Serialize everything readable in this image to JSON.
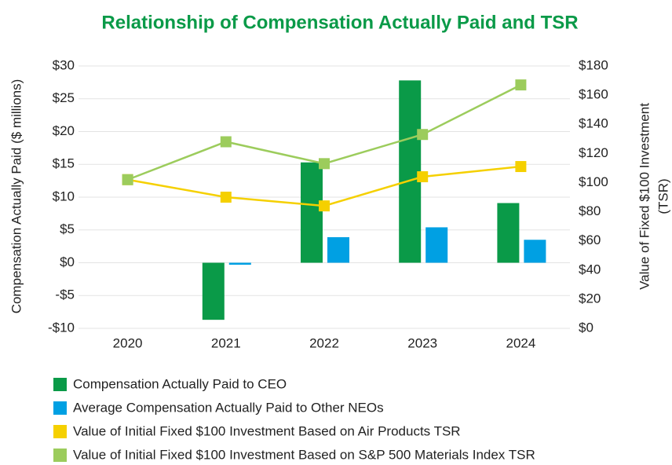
{
  "chart_data": {
    "type": "bar_line",
    "title": "Relationship of Compensation Actually Paid and TSR",
    "ylabel": "Compensation Actually Paid ($ millions)",
    "y2label": [
      "Value of Fixed $100 Investment",
      "(TSR)"
    ],
    "categories": [
      "2020",
      "2021",
      "2022",
      "2023",
      "2024"
    ],
    "ylim": [
      -10,
      30
    ],
    "yticks": [
      {
        "value": -10,
        "label": "-$10"
      },
      {
        "value": -5,
        "label": "-$5"
      },
      {
        "value": 0,
        "label": "$0"
      },
      {
        "value": 5,
        "label": "$5"
      },
      {
        "value": 10,
        "label": "$10"
      },
      {
        "value": 15,
        "label": "$15"
      },
      {
        "value": 20,
        "label": "$20"
      },
      {
        "value": 25,
        "label": "$25"
      },
      {
        "value": 30,
        "label": "$30"
      }
    ],
    "y2lim": [
      0,
      180
    ],
    "y2ticks": [
      {
        "value": 0,
        "label": "$0"
      },
      {
        "value": 20,
        "label": "$20"
      },
      {
        "value": 40,
        "label": "$40"
      },
      {
        "value": 60,
        "label": "$60"
      },
      {
        "value": 80,
        "label": "$80"
      },
      {
        "value": 100,
        "label": "$100"
      },
      {
        "value": 120,
        "label": "$120"
      },
      {
        "value": 140,
        "label": "$140"
      },
      {
        "value": 160,
        "label": "$160"
      },
      {
        "value": 180,
        "label": "$180"
      }
    ],
    "grid": true,
    "series": [
      {
        "name": "Compensation Actually Paid to CEO",
        "type": "bar",
        "color": "#0a9a48",
        "values": [
          null,
          -8.7,
          15.3,
          27.8,
          9.1
        ]
      },
      {
        "name": "Average Compensation Actually Paid to Other NEOs",
        "type": "bar",
        "color": "#00a0e3",
        "values": [
          null,
          -0.3,
          3.9,
          5.4,
          3.5
        ]
      },
      {
        "name": "Value of Initial Fixed $100 Investment Based on Air Products TSR",
        "type": "line",
        "axis": "y2",
        "color": "#f5d000",
        "values": [
          102,
          90,
          84,
          104,
          111
        ]
      },
      {
        "name": "Value of Initial Fixed $100 Investment Based on S&P 500 Materials Index TSR",
        "type": "line",
        "axis": "y2",
        "color": "#9ccc5c",
        "values": [
          102,
          128,
          113,
          133,
          167
        ]
      }
    ]
  }
}
